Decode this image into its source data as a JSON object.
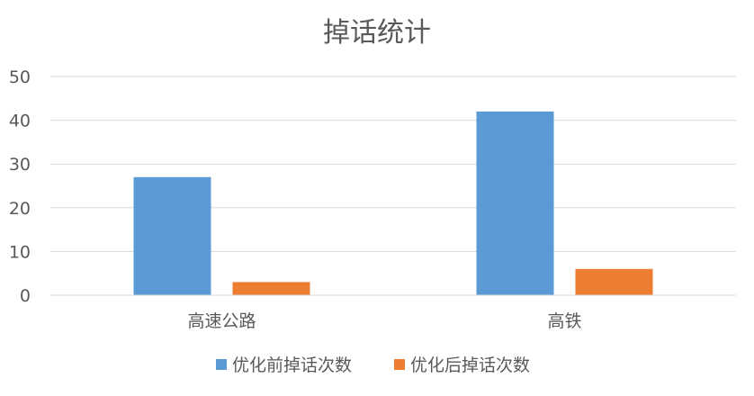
{
  "chart_data": {
    "type": "bar",
    "title": "掉话统计",
    "xlabel": "",
    "ylabel": "",
    "categories": [
      "高速公路",
      "高铁"
    ],
    "series": [
      {
        "name": "优化前掉话次数",
        "values": [
          27,
          42
        ],
        "color": "#5B9BD5"
      },
      {
        "name": "优化后掉话次数",
        "values": [
          3,
          6
        ],
        "color": "#ED7D31"
      }
    ],
    "ylim": [
      0,
      50
    ],
    "yticks": [
      0,
      10,
      20,
      30,
      40,
      50
    ],
    "grid": true,
    "legend_position": "bottom"
  }
}
